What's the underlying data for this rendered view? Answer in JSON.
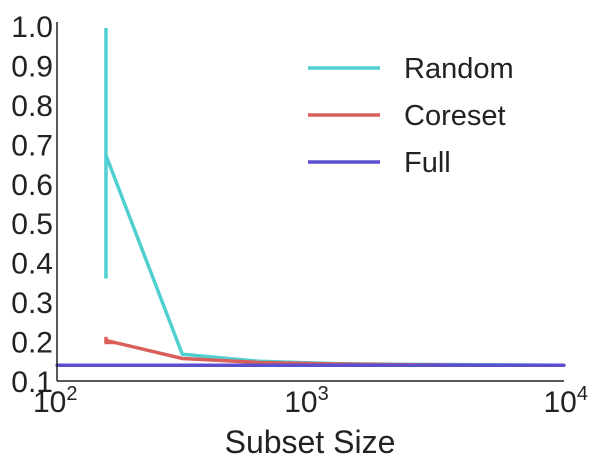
{
  "chart_data": {
    "type": "line",
    "title": "",
    "xlabel": "Subset Size",
    "ylabel": "",
    "xscale": "log",
    "xlim": [
      100,
      10000
    ],
    "ylim": [
      0.1,
      1.0
    ],
    "xticks": [
      {
        "value": 100,
        "base": "10",
        "exp": "2"
      },
      {
        "value": 1000,
        "base": "10",
        "exp": "3"
      },
      {
        "value": 10000,
        "base": "10",
        "exp": "4"
      }
    ],
    "yticks": [
      {
        "value": 0.1,
        "label": "0.1"
      },
      {
        "value": 0.2,
        "label": "0.2"
      },
      {
        "value": 0.3,
        "label": "0.3"
      },
      {
        "value": 0.4,
        "label": "0.4"
      },
      {
        "value": 0.5,
        "label": "0.5"
      },
      {
        "value": 0.6,
        "label": "0.6"
      },
      {
        "value": 0.7,
        "label": "0.7"
      },
      {
        "value": 0.8,
        "label": "0.8"
      },
      {
        "value": 0.9,
        "label": "0.9"
      },
      {
        "value": 1.0,
        "label": "1.0"
      }
    ],
    "grid": false,
    "legend_position": "top-right",
    "series": [
      {
        "name": "Random",
        "color": "#4fcfd0",
        "x": [
          156,
          312,
          625,
          1250,
          2500,
          5000,
          10000
        ],
        "y": [
          0.672,
          0.168,
          0.15,
          0.144,
          0.142,
          0.141,
          0.14
        ],
        "error": [
          {
            "x": 156,
            "low": 0.36,
            "high": 0.995
          }
        ]
      },
      {
        "name": "Coreset",
        "color": "#d9605a",
        "x": [
          156,
          312,
          625,
          1250,
          2500,
          5000,
          10000
        ],
        "y": [
          0.203,
          0.157,
          0.147,
          0.143,
          0.141,
          0.14,
          0.14
        ],
        "error": [
          {
            "x": 156,
            "low": 0.197,
            "high": 0.212
          }
        ]
      },
      {
        "name": "Full",
        "color": "#5b4fd0",
        "x": [
          100,
          10000
        ],
        "y": [
          0.14,
          0.14
        ]
      }
    ]
  }
}
